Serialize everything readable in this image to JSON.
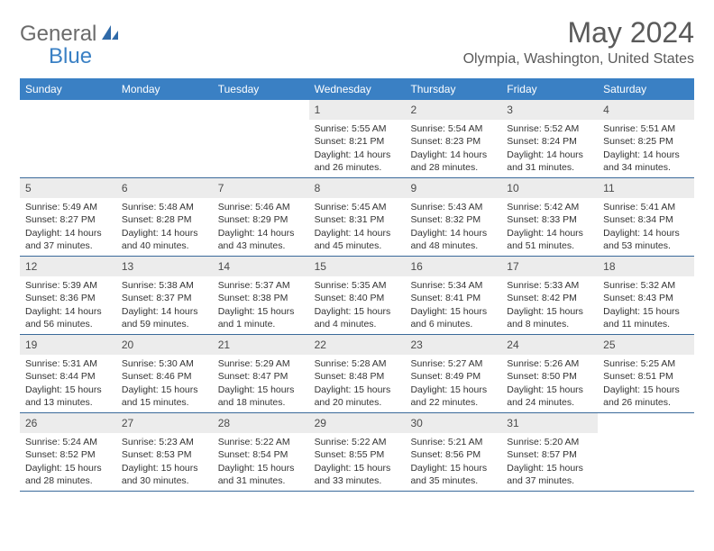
{
  "logo": {
    "text1": "General",
    "text2": "Blue"
  },
  "title": "May 2024",
  "location": "Olympia, Washington, United States",
  "colors": {
    "brand_blue": "#3a80c4",
    "header_text": "#5a5a5a",
    "logo_gray": "#6b6b6b",
    "daynum_bg": "#ececec",
    "week_border": "#3a6a9a"
  },
  "weekdays": [
    "Sunday",
    "Monday",
    "Tuesday",
    "Wednesday",
    "Thursday",
    "Friday",
    "Saturday"
  ],
  "weeks": [
    [
      {
        "n": "",
        "sr": "",
        "ss": "",
        "dl": ""
      },
      {
        "n": "",
        "sr": "",
        "ss": "",
        "dl": ""
      },
      {
        "n": "",
        "sr": "",
        "ss": "",
        "dl": ""
      },
      {
        "n": "1",
        "sr": "Sunrise: 5:55 AM",
        "ss": "Sunset: 8:21 PM",
        "dl": "Daylight: 14 hours and 26 minutes."
      },
      {
        "n": "2",
        "sr": "Sunrise: 5:54 AM",
        "ss": "Sunset: 8:23 PM",
        "dl": "Daylight: 14 hours and 28 minutes."
      },
      {
        "n": "3",
        "sr": "Sunrise: 5:52 AM",
        "ss": "Sunset: 8:24 PM",
        "dl": "Daylight: 14 hours and 31 minutes."
      },
      {
        "n": "4",
        "sr": "Sunrise: 5:51 AM",
        "ss": "Sunset: 8:25 PM",
        "dl": "Daylight: 14 hours and 34 minutes."
      }
    ],
    [
      {
        "n": "5",
        "sr": "Sunrise: 5:49 AM",
        "ss": "Sunset: 8:27 PM",
        "dl": "Daylight: 14 hours and 37 minutes."
      },
      {
        "n": "6",
        "sr": "Sunrise: 5:48 AM",
        "ss": "Sunset: 8:28 PM",
        "dl": "Daylight: 14 hours and 40 minutes."
      },
      {
        "n": "7",
        "sr": "Sunrise: 5:46 AM",
        "ss": "Sunset: 8:29 PM",
        "dl": "Daylight: 14 hours and 43 minutes."
      },
      {
        "n": "8",
        "sr": "Sunrise: 5:45 AM",
        "ss": "Sunset: 8:31 PM",
        "dl": "Daylight: 14 hours and 45 minutes."
      },
      {
        "n": "9",
        "sr": "Sunrise: 5:43 AM",
        "ss": "Sunset: 8:32 PM",
        "dl": "Daylight: 14 hours and 48 minutes."
      },
      {
        "n": "10",
        "sr": "Sunrise: 5:42 AM",
        "ss": "Sunset: 8:33 PM",
        "dl": "Daylight: 14 hours and 51 minutes."
      },
      {
        "n": "11",
        "sr": "Sunrise: 5:41 AM",
        "ss": "Sunset: 8:34 PM",
        "dl": "Daylight: 14 hours and 53 minutes."
      }
    ],
    [
      {
        "n": "12",
        "sr": "Sunrise: 5:39 AM",
        "ss": "Sunset: 8:36 PM",
        "dl": "Daylight: 14 hours and 56 minutes."
      },
      {
        "n": "13",
        "sr": "Sunrise: 5:38 AM",
        "ss": "Sunset: 8:37 PM",
        "dl": "Daylight: 14 hours and 59 minutes."
      },
      {
        "n": "14",
        "sr": "Sunrise: 5:37 AM",
        "ss": "Sunset: 8:38 PM",
        "dl": "Daylight: 15 hours and 1 minute."
      },
      {
        "n": "15",
        "sr": "Sunrise: 5:35 AM",
        "ss": "Sunset: 8:40 PM",
        "dl": "Daylight: 15 hours and 4 minutes."
      },
      {
        "n": "16",
        "sr": "Sunrise: 5:34 AM",
        "ss": "Sunset: 8:41 PM",
        "dl": "Daylight: 15 hours and 6 minutes."
      },
      {
        "n": "17",
        "sr": "Sunrise: 5:33 AM",
        "ss": "Sunset: 8:42 PM",
        "dl": "Daylight: 15 hours and 8 minutes."
      },
      {
        "n": "18",
        "sr": "Sunrise: 5:32 AM",
        "ss": "Sunset: 8:43 PM",
        "dl": "Daylight: 15 hours and 11 minutes."
      }
    ],
    [
      {
        "n": "19",
        "sr": "Sunrise: 5:31 AM",
        "ss": "Sunset: 8:44 PM",
        "dl": "Daylight: 15 hours and 13 minutes."
      },
      {
        "n": "20",
        "sr": "Sunrise: 5:30 AM",
        "ss": "Sunset: 8:46 PM",
        "dl": "Daylight: 15 hours and 15 minutes."
      },
      {
        "n": "21",
        "sr": "Sunrise: 5:29 AM",
        "ss": "Sunset: 8:47 PM",
        "dl": "Daylight: 15 hours and 18 minutes."
      },
      {
        "n": "22",
        "sr": "Sunrise: 5:28 AM",
        "ss": "Sunset: 8:48 PM",
        "dl": "Daylight: 15 hours and 20 minutes."
      },
      {
        "n": "23",
        "sr": "Sunrise: 5:27 AM",
        "ss": "Sunset: 8:49 PM",
        "dl": "Daylight: 15 hours and 22 minutes."
      },
      {
        "n": "24",
        "sr": "Sunrise: 5:26 AM",
        "ss": "Sunset: 8:50 PM",
        "dl": "Daylight: 15 hours and 24 minutes."
      },
      {
        "n": "25",
        "sr": "Sunrise: 5:25 AM",
        "ss": "Sunset: 8:51 PM",
        "dl": "Daylight: 15 hours and 26 minutes."
      }
    ],
    [
      {
        "n": "26",
        "sr": "Sunrise: 5:24 AM",
        "ss": "Sunset: 8:52 PM",
        "dl": "Daylight: 15 hours and 28 minutes."
      },
      {
        "n": "27",
        "sr": "Sunrise: 5:23 AM",
        "ss": "Sunset: 8:53 PM",
        "dl": "Daylight: 15 hours and 30 minutes."
      },
      {
        "n": "28",
        "sr": "Sunrise: 5:22 AM",
        "ss": "Sunset: 8:54 PM",
        "dl": "Daylight: 15 hours and 31 minutes."
      },
      {
        "n": "29",
        "sr": "Sunrise: 5:22 AM",
        "ss": "Sunset: 8:55 PM",
        "dl": "Daylight: 15 hours and 33 minutes."
      },
      {
        "n": "30",
        "sr": "Sunrise: 5:21 AM",
        "ss": "Sunset: 8:56 PM",
        "dl": "Daylight: 15 hours and 35 minutes."
      },
      {
        "n": "31",
        "sr": "Sunrise: 5:20 AM",
        "ss": "Sunset: 8:57 PM",
        "dl": "Daylight: 15 hours and 37 minutes."
      },
      {
        "n": "",
        "sr": "",
        "ss": "",
        "dl": ""
      }
    ]
  ]
}
